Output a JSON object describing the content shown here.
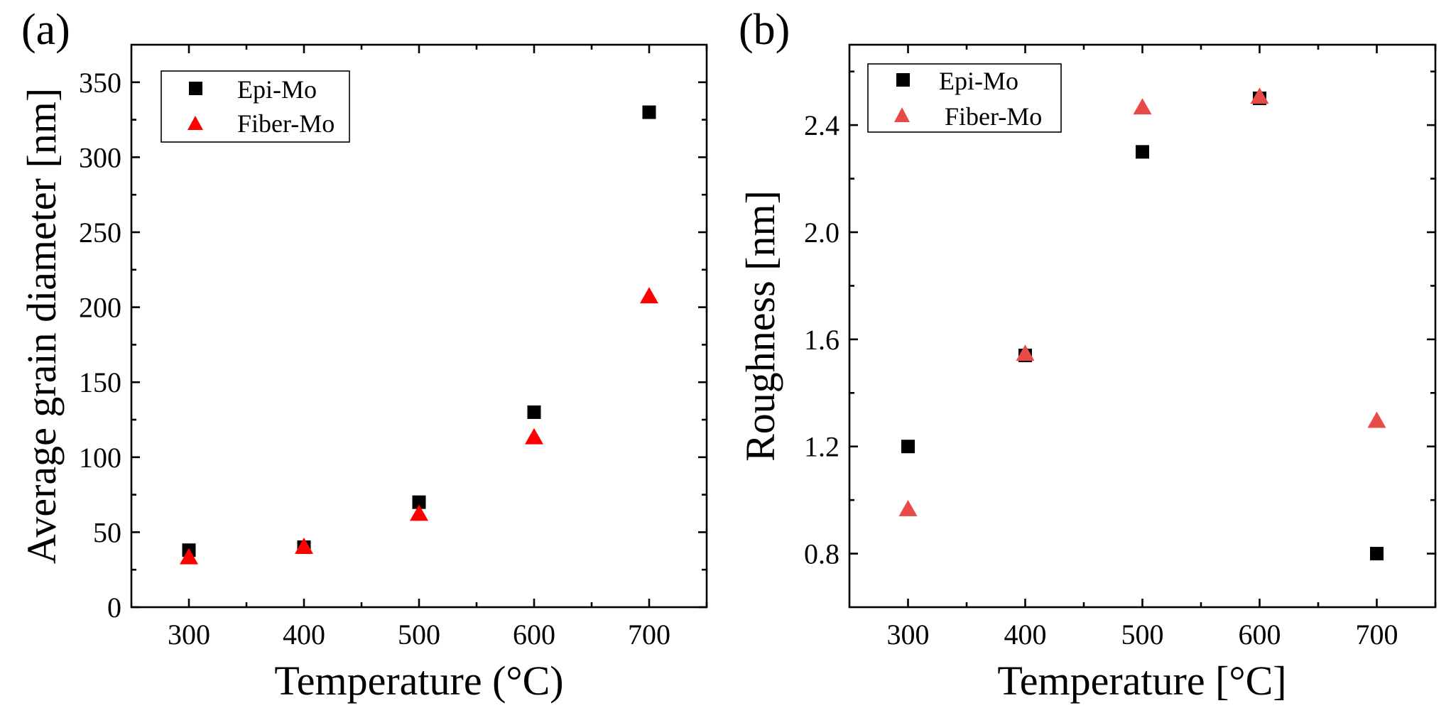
{
  "chart_data": [
    {
      "type": "scatter",
      "panel_label": "(a)",
      "xlabel": "Temperature (°C)",
      "ylabel": "Average grain diameter [nm]",
      "xlim": [
        250,
        750
      ],
      "ylim": [
        0,
        375
      ],
      "xticks": [
        300,
        400,
        500,
        600,
        700
      ],
      "yticks": [
        0,
        50,
        100,
        150,
        200,
        250,
        300,
        350
      ],
      "legend_position": "top-left",
      "series": [
        {
          "name": "Epi-Mo",
          "marker": "square",
          "color": "#000000",
          "x": [
            300,
            400,
            500,
            600,
            700
          ],
          "y": [
            38,
            40,
            70,
            130,
            330
          ]
        },
        {
          "name": "Fiber-Mo",
          "marker": "triangle",
          "color": "#ff0000",
          "x": [
            300,
            400,
            500,
            600,
            700
          ],
          "y": [
            34,
            41,
            63,
            114,
            208
          ]
        }
      ]
    },
    {
      "type": "scatter",
      "panel_label": "(b)",
      "xlabel": "Temperature [°C]",
      "ylabel": "Roughness [nm]",
      "xlim": [
        250,
        750
      ],
      "ylim": [
        0.6,
        2.7
      ],
      "xticks": [
        300,
        400,
        500,
        600,
        700
      ],
      "yticks": [
        "0.8",
        "1.2",
        "1.6",
        "2.0",
        "2.4"
      ],
      "legend_position": "top-left",
      "series": [
        {
          "name": "Epi-Mo",
          "marker": "square",
          "color": "#000000",
          "x": [
            300,
            400,
            500,
            600,
            700
          ],
          "y": [
            1.2,
            1.54,
            2.3,
            2.5,
            0.8
          ]
        },
        {
          "name": "Fiber-Mo",
          "marker": "triangle",
          "color": "#e84a4a",
          "x": [
            300,
            400,
            500,
            600,
            700
          ],
          "y": [
            0.97,
            1.55,
            2.47,
            2.51,
            1.3
          ]
        }
      ]
    }
  ]
}
